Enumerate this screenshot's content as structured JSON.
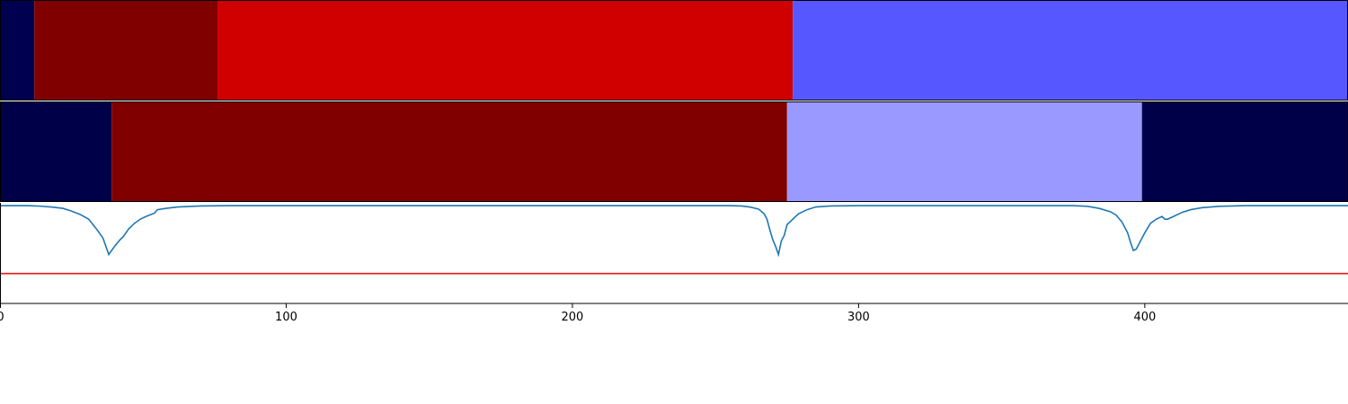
{
  "chart_data": [
    {
      "type": "heatmap",
      "panel": "top-band",
      "segments": [
        {
          "start": 0,
          "end": 12,
          "color": "#000050"
        },
        {
          "start": 12,
          "end": 76,
          "color": "#800000"
        },
        {
          "start": 76,
          "end": 277,
          "color": "#d10000"
        },
        {
          "start": 277,
          "end": 471,
          "color": "#5757ff"
        }
      ]
    },
    {
      "type": "heatmap",
      "panel": "middle-band",
      "segments": [
        {
          "start": 0,
          "end": 39,
          "color": "#000048"
        },
        {
          "start": 39,
          "end": 275,
          "color": "#800000"
        },
        {
          "start": 275,
          "end": 399,
          "color": "#9999ff"
        },
        {
          "start": 399,
          "end": 471,
          "color": "#000048"
        }
      ]
    },
    {
      "type": "line",
      "panel": "bottom-plot",
      "xlim": [
        0,
        471
      ],
      "ylim": [
        -0.72,
        0.02
      ],
      "xticks": [
        0,
        100,
        200,
        300,
        400
      ],
      "xtick_labels": [
        "0",
        "100",
        "200",
        "300",
        "400"
      ],
      "grid": false,
      "threshold": {
        "y": -0.5,
        "color": "#e41a1c"
      },
      "series": [
        {
          "color": "#1f77b4",
          "points": [
            [
              0,
              0
            ],
            [
              10,
              0
            ],
            [
              14,
              -0.004
            ],
            [
              18,
              -0.01
            ],
            [
              22,
              -0.02
            ],
            [
              25,
              -0.04
            ],
            [
              28,
              -0.065
            ],
            [
              31,
              -0.1
            ],
            [
              34,
              -0.18
            ],
            [
              36,
              -0.24
            ],
            [
              37,
              -0.3
            ],
            [
              38,
              -0.36
            ],
            [
              40,
              -0.3
            ],
            [
              42,
              -0.25
            ],
            [
              43,
              -0.23
            ],
            [
              44,
              -0.2
            ],
            [
              45,
              -0.17
            ],
            [
              47,
              -0.13
            ],
            [
              49,
              -0.1
            ],
            [
              51,
              -0.08
            ],
            [
              54,
              -0.055
            ],
            [
              55,
              -0.03
            ],
            [
              58,
              -0.02
            ],
            [
              62,
              -0.01
            ],
            [
              70,
              -0.003
            ],
            [
              80,
              0
            ],
            [
              255,
              0
            ],
            [
              259,
              -0.003
            ],
            [
              262,
              -0.01
            ],
            [
              265,
              -0.025
            ],
            [
              267,
              -0.06
            ],
            [
              268,
              -0.1
            ],
            [
              269,
              -0.18
            ],
            [
              270,
              -0.25
            ],
            [
              271,
              -0.3
            ],
            [
              272,
              -0.36
            ],
            [
              273,
              -0.26
            ],
            [
              274,
              -0.22
            ],
            [
              275,
              -0.14
            ],
            [
              277,
              -0.1
            ],
            [
              279,
              -0.06
            ],
            [
              282,
              -0.03
            ],
            [
              285,
              -0.01
            ],
            [
              290,
              -0.003
            ],
            [
              300,
              0
            ],
            [
              375,
              0
            ],
            [
              380,
              -0.005
            ],
            [
              384,
              -0.02
            ],
            [
              388,
              -0.045
            ],
            [
              390,
              -0.07
            ],
            [
              392,
              -0.12
            ],
            [
              394,
              -0.2
            ],
            [
              395,
              -0.27
            ],
            [
              396,
              -0.33
            ],
            [
              397,
              -0.32
            ],
            [
              399,
              -0.24
            ],
            [
              400,
              -0.2
            ],
            [
              402,
              -0.13
            ],
            [
              404,
              -0.1
            ],
            [
              406,
              -0.08
            ],
            [
              407,
              -0.1
            ],
            [
              408,
              -0.1
            ],
            [
              410,
              -0.08
            ],
            [
              413,
              -0.05
            ],
            [
              416,
              -0.03
            ],
            [
              420,
              -0.015
            ],
            [
              426,
              -0.005
            ],
            [
              435,
              0
            ],
            [
              471,
              0
            ]
          ]
        }
      ]
    }
  ]
}
